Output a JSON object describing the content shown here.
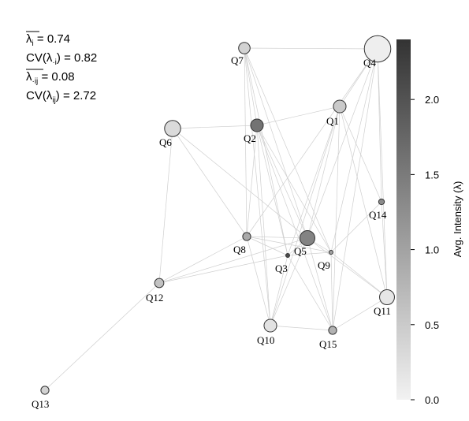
{
  "stats": {
    "line1": {
      "sym": "λ",
      "sub": "i",
      "bar": true,
      "value": " = 0.74"
    },
    "line2": {
      "pre": "CV(",
      "sym": "λ",
      "sub": "·i",
      "post": ")",
      "value": " = 0.82"
    },
    "line3": {
      "sym": "λ",
      "sub": "·ij",
      "bar": true,
      "value": " = 0.08"
    },
    "line4": {
      "pre": "CV(",
      "sym": "λ",
      "sub": "ij",
      "post": ")",
      "value": " = 2.72"
    }
  },
  "colorbar": {
    "title": "Avg. Intensity (λ)",
    "min": 0.0,
    "max": 2.4,
    "ticks": [
      {
        "value": 0.0,
        "label": "0.0"
      },
      {
        "value": 0.5,
        "label": "0.5"
      },
      {
        "value": 1.0,
        "label": "1.0"
      },
      {
        "value": 1.5,
        "label": "1.5"
      },
      {
        "value": 2.0,
        "label": "2.0"
      }
    ],
    "color_low": "#f2f2f2",
    "color_high": "#333333"
  },
  "nodes": [
    {
      "id": "Q1",
      "label": "Q1",
      "intensity": 0.5,
      "size": 1.1
    },
    {
      "id": "Q2",
      "label": "Q2",
      "intensity": 1.6,
      "size": 1.1
    },
    {
      "id": "Q3",
      "label": "Q3",
      "intensity": 2.1,
      "size": 0.3
    },
    {
      "id": "Q4",
      "label": "Q4",
      "intensity": 0.05,
      "size": 2.3
    },
    {
      "id": "Q5",
      "label": "Q5",
      "intensity": 1.4,
      "size": 1.3
    },
    {
      "id": "Q6",
      "label": "Q6",
      "intensity": 0.3,
      "size": 1.4
    },
    {
      "id": "Q7",
      "label": "Q7",
      "intensity": 0.4,
      "size": 1.0
    },
    {
      "id": "Q8",
      "label": "Q8",
      "intensity": 0.9,
      "size": 0.7
    },
    {
      "id": "Q9",
      "label": "Q9",
      "intensity": 1.0,
      "size": 0.3
    },
    {
      "id": "Q10",
      "label": "Q10",
      "intensity": 0.2,
      "size": 1.1
    },
    {
      "id": "Q11",
      "label": "Q11",
      "intensity": 0.15,
      "size": 1.3
    },
    {
      "id": "Q12",
      "label": "Q12",
      "intensity": 0.6,
      "size": 0.8
    },
    {
      "id": "Q13",
      "label": "Q13",
      "intensity": 0.4,
      "size": 0.7
    },
    {
      "id": "Q14",
      "label": "Q14",
      "intensity": 1.3,
      "size": 0.5
    },
    {
      "id": "Q15",
      "label": "Q15",
      "intensity": 0.8,
      "size": 0.7
    }
  ],
  "edges": [
    [
      "Q7",
      "Q4"
    ],
    [
      "Q7",
      "Q2"
    ],
    [
      "Q7",
      "Q8"
    ],
    [
      "Q7",
      "Q5"
    ],
    [
      "Q7",
      "Q3"
    ],
    [
      "Q7",
      "Q10"
    ],
    [
      "Q7",
      "Q9"
    ],
    [
      "Q6",
      "Q2"
    ],
    [
      "Q6",
      "Q12"
    ],
    [
      "Q6",
      "Q5"
    ],
    [
      "Q6",
      "Q8"
    ],
    [
      "Q2",
      "Q1"
    ],
    [
      "Q2",
      "Q8"
    ],
    [
      "Q2",
      "Q3"
    ],
    [
      "Q2",
      "Q5"
    ],
    [
      "Q2",
      "Q9"
    ],
    [
      "Q2",
      "Q10"
    ],
    [
      "Q2",
      "Q15"
    ],
    [
      "Q1",
      "Q4"
    ],
    [
      "Q1",
      "Q5"
    ],
    [
      "Q1",
      "Q3"
    ],
    [
      "Q1",
      "Q14"
    ],
    [
      "Q1",
      "Q10"
    ],
    [
      "Q1",
      "Q15"
    ],
    [
      "Q1",
      "Q11"
    ],
    [
      "Q4",
      "Q5"
    ],
    [
      "Q4",
      "Q8"
    ],
    [
      "Q4",
      "Q14"
    ],
    [
      "Q4",
      "Q11"
    ],
    [
      "Q4",
      "Q15"
    ],
    [
      "Q4",
      "Q9"
    ],
    [
      "Q8",
      "Q5"
    ],
    [
      "Q8",
      "Q3"
    ],
    [
      "Q8",
      "Q9"
    ],
    [
      "Q8",
      "Q10"
    ],
    [
      "Q8",
      "Q12"
    ],
    [
      "Q5",
      "Q9"
    ],
    [
      "Q5",
      "Q10"
    ],
    [
      "Q5",
      "Q15"
    ],
    [
      "Q5",
      "Q11"
    ],
    [
      "Q5",
      "Q12"
    ],
    [
      "Q5",
      "Q3"
    ],
    [
      "Q3",
      "Q9"
    ],
    [
      "Q3",
      "Q10"
    ],
    [
      "Q3",
      "Q15"
    ],
    [
      "Q9",
      "Q14"
    ],
    [
      "Q9",
      "Q11"
    ],
    [
      "Q9",
      "Q15"
    ],
    [
      "Q10",
      "Q15"
    ],
    [
      "Q15",
      "Q11"
    ],
    [
      "Q14",
      "Q11"
    ],
    [
      "Q12",
      "Q13"
    ],
    [
      "Q12",
      "Q3"
    ]
  ]
}
